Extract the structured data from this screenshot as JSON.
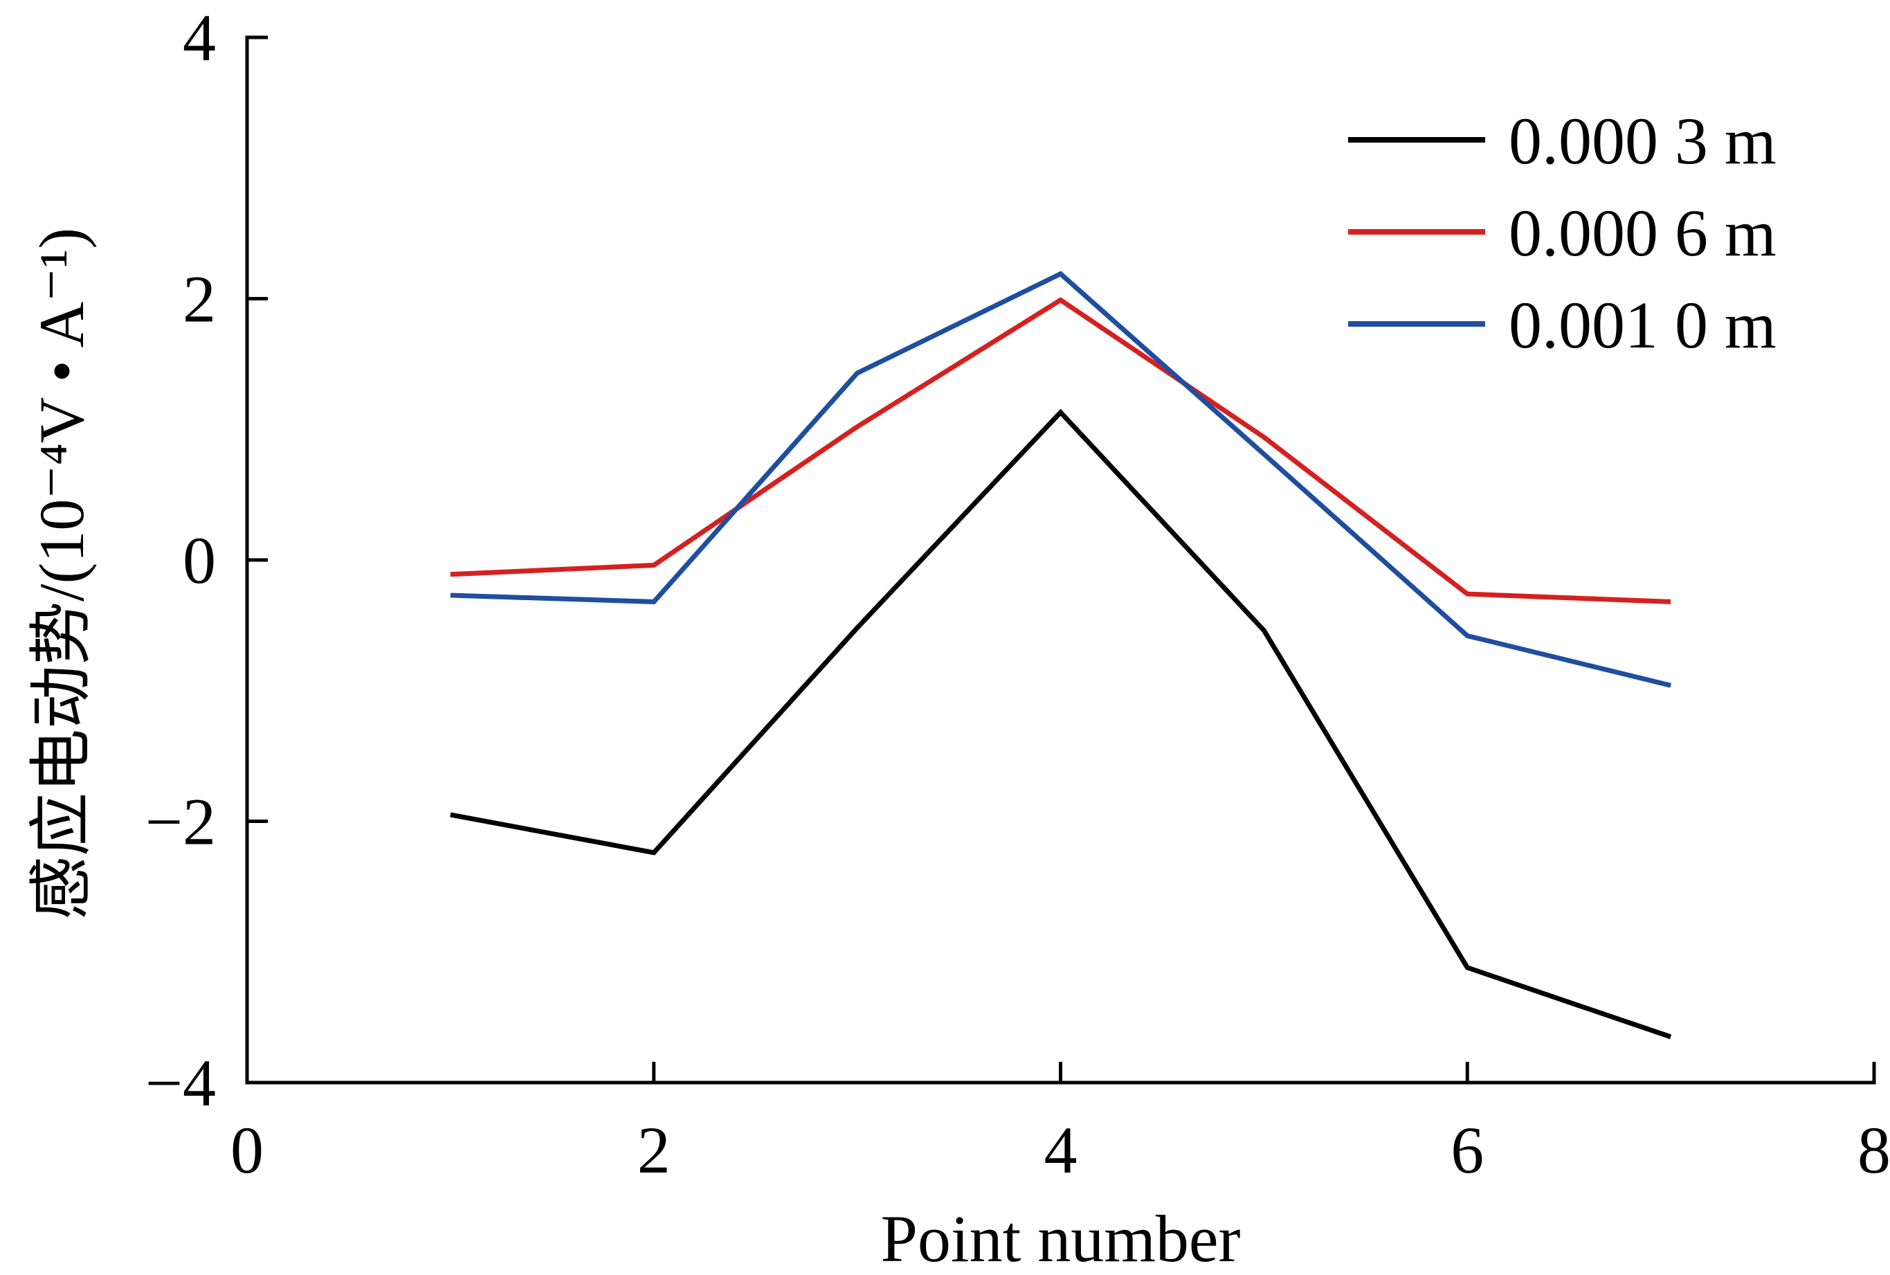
{
  "chart_data": {
    "type": "line",
    "title": "",
    "xlabel": "Point number",
    "ylabel": "感应电动势/(10⁻⁴V • A⁻¹)",
    "xlim": [
      0,
      8
    ],
    "ylim": [
      -4,
      4
    ],
    "x_ticks": [
      "0",
      "2",
      "4",
      "6",
      "8"
    ],
    "y_ticks": [
      "4",
      "2",
      "0",
      "−2",
      "−4"
    ],
    "grid": false,
    "legend_position": "top-right",
    "x": [
      1,
      2,
      3,
      4,
      5,
      6,
      7
    ],
    "series": [
      {
        "name": "0.000 3 m",
        "color": "#000000",
        "values": [
          -1.95,
          -2.24,
          -0.52,
          1.13,
          -0.54,
          -3.12,
          -3.65
        ]
      },
      {
        "name": "0.000 6 m",
        "color": "#d62020",
        "values": [
          -0.11,
          -0.04,
          1.02,
          1.99,
          0.94,
          -0.26,
          -0.32
        ]
      },
      {
        "name": "0.001 0 m",
        "color": "#1f4ea1",
        "values": [
          -0.27,
          -0.32,
          1.43,
          2.19,
          0.81,
          -0.58,
          -0.96
        ]
      }
    ]
  }
}
